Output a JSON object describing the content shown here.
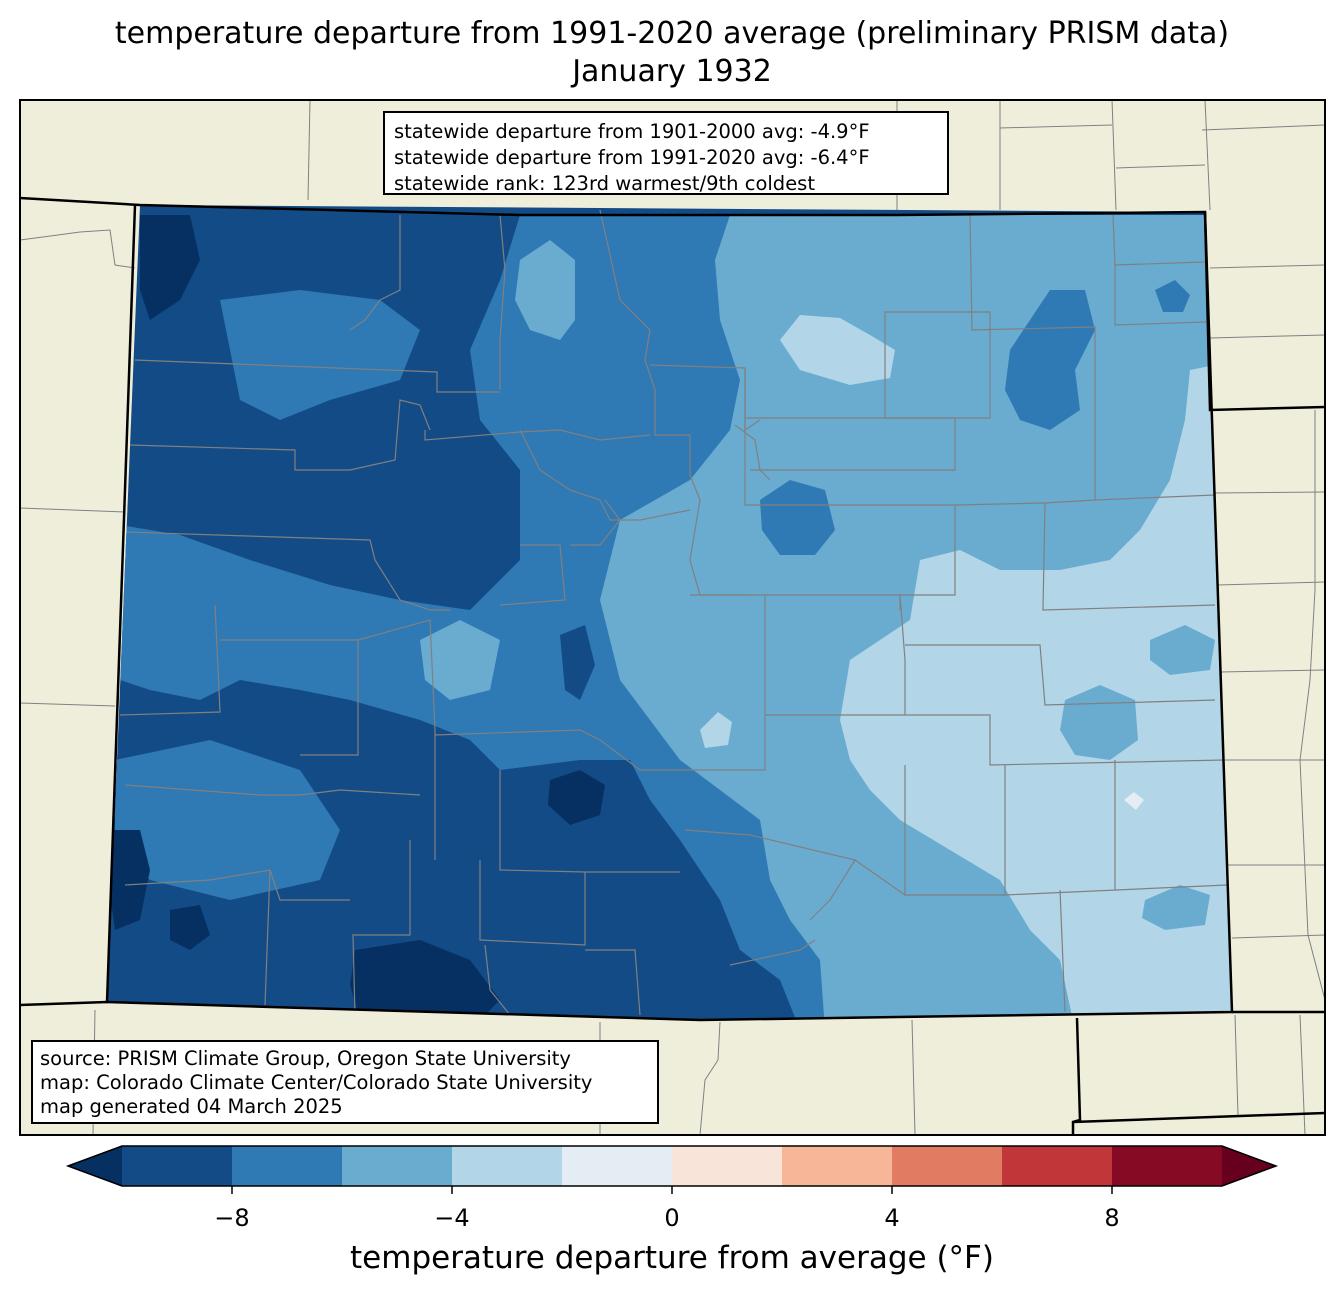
{
  "title": {
    "line1": "temperature departure from 1991-2020 average (preliminary PRISM data)",
    "line2": "January 1932"
  },
  "stats": {
    "line1": "statewide departure from 1901-2000 avg: -4.9°F",
    "line2": "statewide departure from 1991-2020 avg: -6.4°F",
    "line3": "statewide rank: 123rd warmest/9th coldest"
  },
  "source": {
    "line1": "source: PRISM Climate Group, Oregon State University",
    "line2": "map: Colorado Climate Center/Colorado State University",
    "line3": "map generated 04 March 2025"
  },
  "colorbar": {
    "label": "temperature departure from average (°F)",
    "ticks": [
      "−8",
      "−4",
      "0",
      "4",
      "8"
    ],
    "tick_values": [
      -8,
      -4,
      0,
      4,
      8
    ],
    "range": [
      -10,
      10
    ],
    "bins": [
      {
        "min": -10,
        "max": -8,
        "color": "#134b87"
      },
      {
        "min": -8,
        "max": -6,
        "color": "#2f79b5"
      },
      {
        "min": -6,
        "max": -4,
        "color": "#6aacd0"
      },
      {
        "min": -4,
        "max": -2,
        "color": "#b2d6e8"
      },
      {
        "min": -2,
        "max": 0,
        "color": "#e3edf3"
      },
      {
        "min": 0,
        "max": 2,
        "color": "#f9e4d9"
      },
      {
        "min": 2,
        "max": 4,
        "color": "#f7b698"
      },
      {
        "min": 4,
        "max": 6,
        "color": "#e17c62"
      },
      {
        "min": 6,
        "max": 8,
        "color": "#c13639"
      },
      {
        "min": 8,
        "max": 10,
        "color": "#870a24"
      }
    ],
    "under_color": "#053061",
    "over_color": "#67001f"
  },
  "colors": {
    "land": "#efeedb",
    "very_cold": "#053061",
    "border": "#000000",
    "county": "#808080"
  }
}
